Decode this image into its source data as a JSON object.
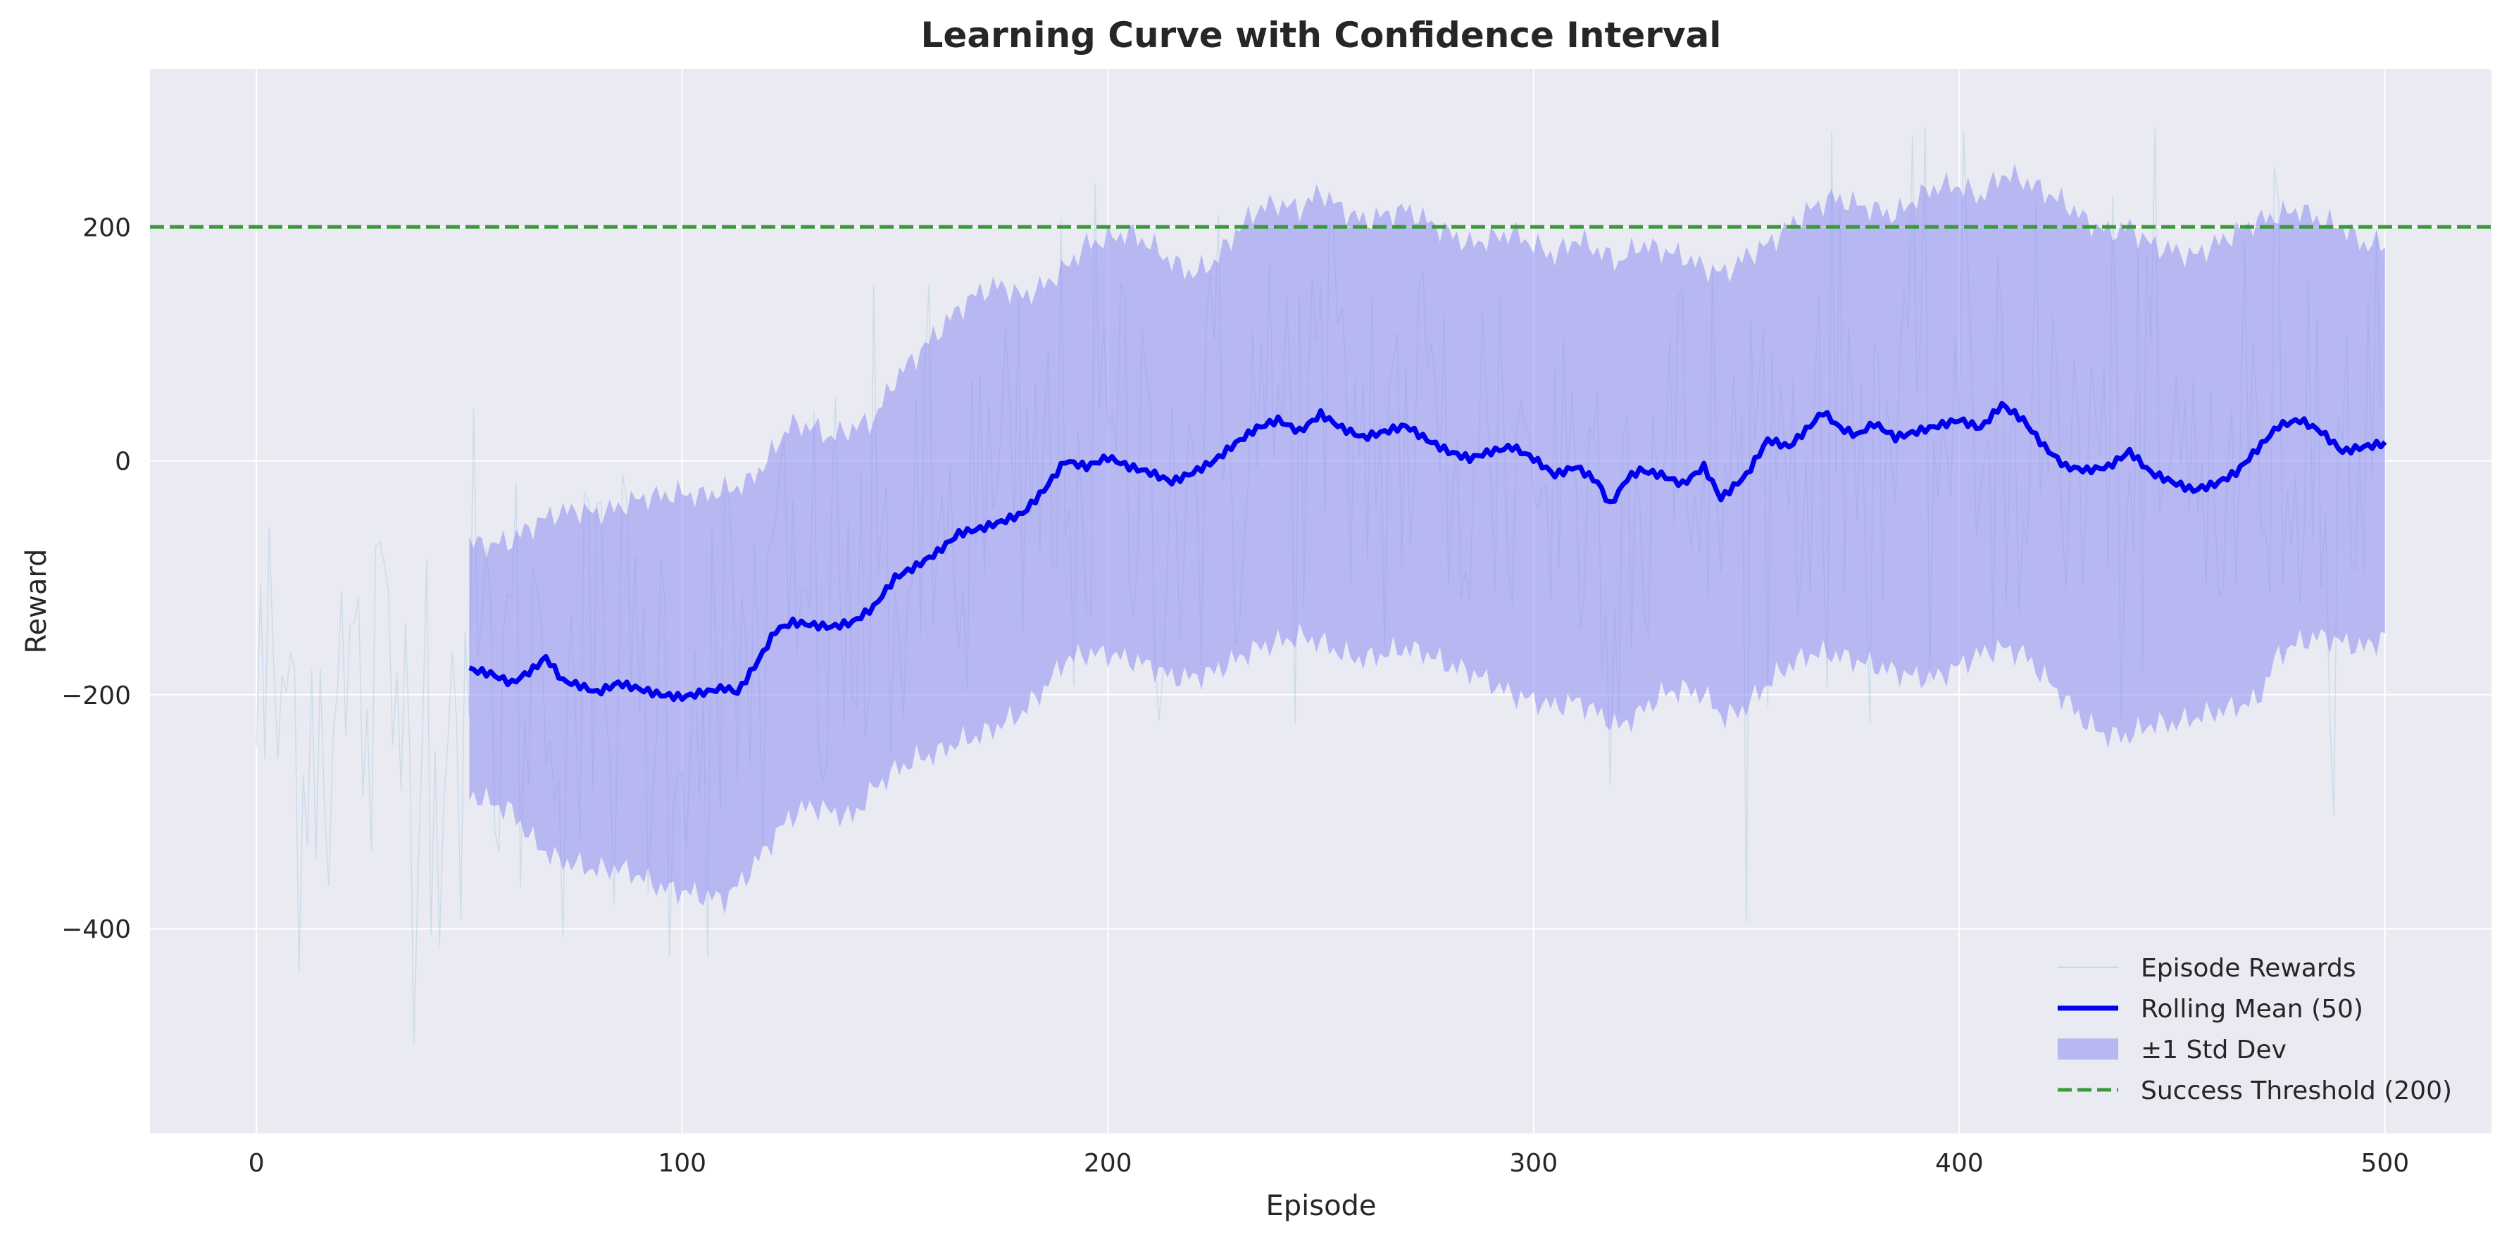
{
  "chart_data": {
    "type": "line",
    "title": "Learning Curve with Confidence Interval",
    "xlabel": "Episode",
    "ylabel": "Reward",
    "xlim": [
      -25,
      525
    ],
    "ylim": [
      -575,
      335
    ],
    "xticks": [
      0,
      100,
      200,
      300,
      400,
      500
    ],
    "yticks": [
      -400,
      -200,
      0,
      200
    ],
    "ytick_labels": [
      "−400",
      "−200",
      "0",
      "200"
    ],
    "grid": true,
    "legend_position": "lower-right",
    "colors": {
      "background": "#eaeaf2",
      "grid": "#ffffff",
      "episode_rewards": "#a9cce3",
      "rolling_mean": "#0000ee",
      "std_band": "#8c8cf2",
      "threshold": "#3a9a3a"
    },
    "series": [
      {
        "name": "Episode Rewards",
        "role": "raw",
        "x_start": 0,
        "x_end": 500,
        "noise_std": 110
      },
      {
        "name": "Rolling Mean (50)",
        "role": "mean",
        "x": [
          50,
          55,
          60,
          65,
          68,
          72,
          76,
          80,
          85,
          90,
          95,
          100,
          105,
          110,
          113,
          118,
          122,
          126,
          130,
          135,
          140,
          145,
          150,
          155,
          160,
          165,
          170,
          175,
          180,
          185,
          190,
          195,
          200,
          205,
          210,
          215,
          220,
          225,
          230,
          235,
          240,
          245,
          250,
          255,
          260,
          265,
          270,
          275,
          280,
          285,
          290,
          295,
          300,
          305,
          310,
          315,
          318,
          322,
          325,
          330,
          335,
          340,
          344,
          350,
          355,
          360,
          365,
          368,
          372,
          376,
          380,
          385,
          390,
          395,
          400,
          405,
          410,
          415,
          420,
          425,
          430,
          435,
          440,
          445,
          450,
          455,
          460,
          465,
          470,
          475,
          480,
          485,
          490,
          495,
          500
        ],
        "y": [
          -178,
          -182,
          -190,
          -178,
          -168,
          -188,
          -192,
          -198,
          -190,
          -195,
          -200,
          -202,
          -198,
          -194,
          -198,
          -170,
          -145,
          -138,
          -140,
          -142,
          -138,
          -125,
          -100,
          -90,
          -78,
          -62,
          -58,
          -52,
          -45,
          -25,
          0,
          -5,
          3,
          -5,
          -10,
          -18,
          -10,
          0,
          15,
          28,
          35,
          25,
          40,
          28,
          20,
          25,
          30,
          18,
          8,
          2,
          8,
          12,
          2,
          -12,
          -5,
          -18,
          -38,
          -15,
          -8,
          -12,
          -20,
          -5,
          -32,
          -12,
          18,
          12,
          30,
          42,
          28,
          22,
          32,
          20,
          25,
          30,
          35,
          28,
          48,
          35,
          12,
          -5,
          -8,
          -5,
          8,
          -10,
          -18,
          -25,
          -20,
          -10,
          10,
          30,
          35,
          25,
          8,
          12,
          15
        ]
      },
      {
        "name": "±1 Std Dev",
        "role": "band",
        "x": [
          50,
          55,
          60,
          65,
          70,
          75,
          80,
          85,
          90,
          95,
          100,
          105,
          110,
          115,
          120,
          125,
          130,
          135,
          140,
          145,
          150,
          155,
          160,
          165,
          170,
          175,
          180,
          185,
          190,
          195,
          200,
          205,
          210,
          215,
          220,
          225,
          230,
          235,
          240,
          245,
          250,
          255,
          260,
          265,
          270,
          275,
          280,
          285,
          290,
          295,
          300,
          305,
          310,
          315,
          320,
          325,
          330,
          335,
          340,
          345,
          350,
          355,
          360,
          365,
          370,
          375,
          380,
          385,
          390,
          395,
          400,
          405,
          410,
          415,
          420,
          425,
          430,
          435,
          440,
          445,
          450,
          455,
          460,
          465,
          470,
          475,
          480,
          485,
          490,
          495,
          500
        ],
        "upper": [
          -70,
          -72,
          -68,
          -55,
          -45,
          -42,
          -45,
          -40,
          -32,
          -30,
          -28,
          -30,
          -25,
          -20,
          0,
          30,
          30,
          20,
          28,
          35,
          70,
          90,
          110,
          130,
          145,
          150,
          140,
          150,
          165,
          185,
          190,
          195,
          185,
          170,
          160,
          170,
          195,
          215,
          220,
          215,
          230,
          215,
          205,
          210,
          215,
          205,
          195,
          185,
          190,
          195,
          185,
          175,
          190,
          180,
          170,
          185,
          180,
          175,
          165,
          160,
          175,
          185,
          200,
          215,
          225,
          220,
          215,
          210,
          225,
          235,
          235,
          225,
          245,
          240,
          230,
          220,
          205,
          195,
          200,
          185,
          180,
          175,
          185,
          195,
          205,
          210,
          215,
          205,
          200,
          185,
          185
        ],
        "lower": [
          -285,
          -292,
          -300,
          -325,
          -340,
          -345,
          -350,
          -348,
          -355,
          -365,
          -368,
          -372,
          -375,
          -355,
          -330,
          -305,
          -295,
          -300,
          -305,
          -280,
          -265,
          -255,
          -250,
          -240,
          -235,
          -225,
          -215,
          -195,
          -170,
          -165,
          -165,
          -170,
          -175,
          -185,
          -185,
          -180,
          -170,
          -160,
          -155,
          -150,
          -155,
          -165,
          -170,
          -165,
          -160,
          -165,
          -175,
          -180,
          -190,
          -200,
          -205,
          -210,
          -205,
          -215,
          -228,
          -215,
          -200,
          -195,
          -200,
          -220,
          -210,
          -190,
          -175,
          -165,
          -165,
          -170,
          -175,
          -180,
          -185,
          -185,
          -175,
          -165,
          -160,
          -165,
          -185,
          -205,
          -225,
          -235,
          -235,
          -225,
          -225,
          -220,
          -215,
          -210,
          -205,
          -165,
          -155,
          -150,
          -155,
          -160,
          -150
        ]
      },
      {
        "name": "Success Threshold (200)",
        "role": "threshold",
        "y": 200
      }
    ]
  }
}
